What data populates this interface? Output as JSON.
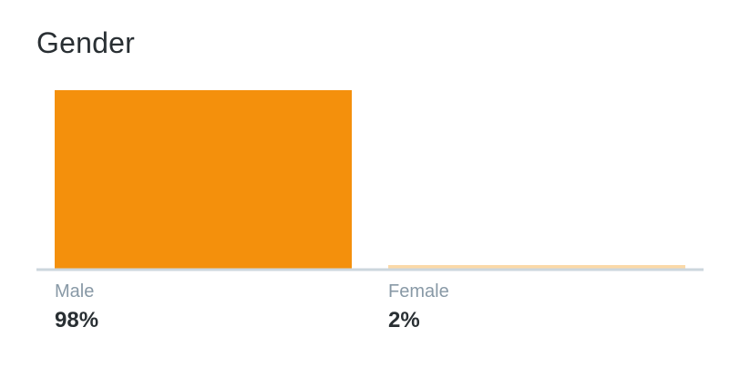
{
  "title": "Gender",
  "colors": {
    "bar": "#f4900c",
    "bar_faint": "#fbd9a8",
    "baseline": "#ccd6dd",
    "label": "#8899a6",
    "value": "#292f33"
  },
  "chart_data": {
    "type": "bar",
    "title": "Gender",
    "categories": [
      "Male",
      "Female"
    ],
    "values": [
      98,
      2
    ],
    "value_labels": [
      "98%",
      "2%"
    ],
    "ylim": [
      0,
      100
    ],
    "grid": false,
    "xlabel": "",
    "ylabel": ""
  }
}
